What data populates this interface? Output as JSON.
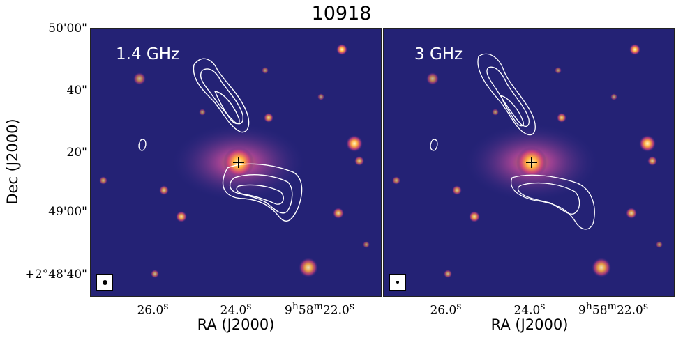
{
  "figure": {
    "title": "10918",
    "x_axis": {
      "label": "RA (J2000)",
      "ticks": [
        "26.0",
        "24.0",
        "9",
        "58",
        "22.0"
      ]
    },
    "y_axis": {
      "label": "Dec (J2000)",
      "ticks": [
        "50'00\"",
        "40\"",
        "20\"",
        "49'00\"",
        "+2°48'40\""
      ]
    },
    "colors": {
      "background_dark": "#1a1a66",
      "contour": "#ffffff",
      "source": "#ffcc33"
    }
  },
  "panels": [
    {
      "frequency_label": "1.4 GHz"
    },
    {
      "frequency_label": "3 GHz"
    }
  ]
}
